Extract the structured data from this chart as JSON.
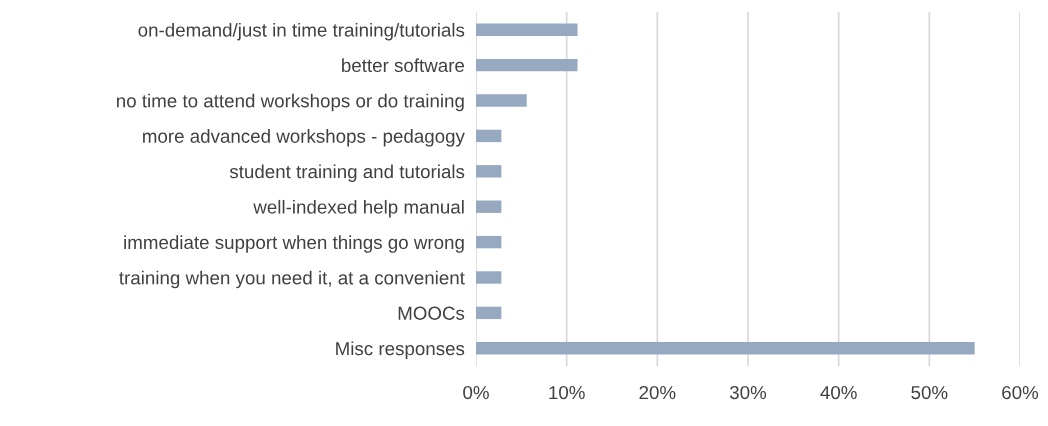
{
  "chart_data": {
    "type": "bar",
    "orientation": "horizontal",
    "categories": [
      "on-demand/just in time training/tutorials",
      "better software",
      "no time to attend workshops or do training",
      "more advanced workshops - pedagogy",
      "student training and tutorials",
      "well-indexed help manual",
      "immediate support when things go wrong",
      "training when you need it, at a convenient",
      "MOOCs",
      "Misc responses"
    ],
    "values": [
      11.2,
      11.2,
      5.6,
      2.8,
      2.8,
      2.8,
      2.8,
      2.8,
      2.8,
      55
    ],
    "color": "#97a9c1",
    "xlim": [
      0,
      60
    ],
    "xticks": [
      {
        "value": 0,
        "label": "0%"
      },
      {
        "value": 10,
        "label": "10%"
      },
      {
        "value": 20,
        "label": "20%"
      },
      {
        "value": 30,
        "label": "30%"
      },
      {
        "value": 40,
        "label": "40%"
      },
      {
        "value": 50,
        "label": "50%"
      },
      {
        "value": 60,
        "label": "60%"
      }
    ],
    "grid": "x"
  }
}
